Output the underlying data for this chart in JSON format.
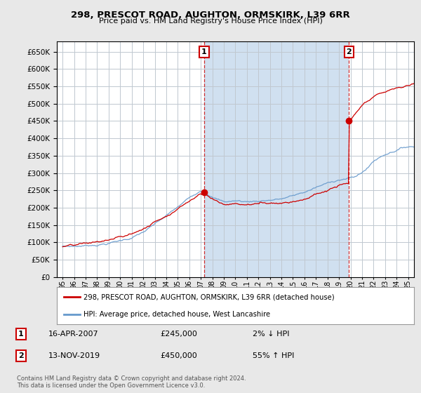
{
  "title": "298, PRESCOT ROAD, AUGHTON, ORMSKIRK, L39 6RR",
  "subtitle": "Price paid vs. HM Land Registry's House Price Index (HPI)",
  "ylim": [
    0,
    680000
  ],
  "yticks": [
    0,
    50000,
    100000,
    150000,
    200000,
    250000,
    300000,
    350000,
    400000,
    450000,
    500000,
    550000,
    600000,
    650000
  ],
  "xlim_start": 1994.5,
  "xlim_end": 2025.5,
  "background_color": "#e8e8e8",
  "plot_bg_color": "#ffffff",
  "shaded_region_color": "#d0e0f0",
  "grid_color": "#c0c8d0",
  "hpi_color": "#6699cc",
  "price_color": "#cc0000",
  "purchase1_x": 2007.29,
  "purchase1_price": 245000,
  "purchase2_x": 2019.87,
  "purchase2_price": 450000,
  "legend_line1": "298, PRESCOT ROAD, AUGHTON, ORMSKIRK, L39 6RR (detached house)",
  "legend_line2": "HPI: Average price, detached house, West Lancashire",
  "annotation1_date": "16-APR-2007",
  "annotation1_price": "£245,000",
  "annotation1_hpi": "2% ↓ HPI",
  "annotation2_date": "13-NOV-2019",
  "annotation2_price": "£450,000",
  "annotation2_hpi": "55% ↑ HPI",
  "footer": "Contains HM Land Registry data © Crown copyright and database right 2024.\nThis data is licensed under the Open Government Licence v3.0."
}
